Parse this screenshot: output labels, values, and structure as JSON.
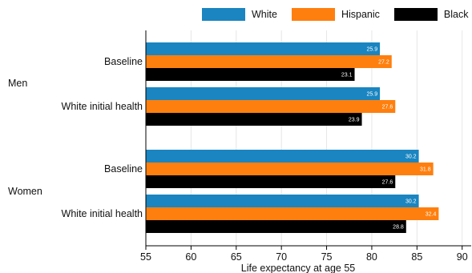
{
  "chart_data": {
    "type": "bar",
    "orientation": "horizontal",
    "xlabel": "Life expectancy at age 55",
    "xlim": [
      55,
      91
    ],
    "xticks": [
      55,
      60,
      65,
      70,
      75,
      80,
      85,
      90
    ],
    "grid": true,
    "legend_position": "top",
    "groups": [
      {
        "label": "Men",
        "categories": [
          {
            "label": "Baseline",
            "values": [
              25.9,
              27.2,
              23.1
            ]
          },
          {
            "label": "White initial health",
            "values": [
              25.9,
              27.6,
              23.9
            ]
          }
        ]
      },
      {
        "label": "Women",
        "categories": [
          {
            "label": "Baseline",
            "values": [
              30.2,
              31.8,
              27.6
            ]
          },
          {
            "label": "White initial health",
            "values": [
              30.2,
              32.4,
              28.8
            ]
          }
        ]
      }
    ],
    "series": [
      {
        "name": "White",
        "color": "#1a85c0"
      },
      {
        "name": "Hispanic",
        "color": "#ff7f0e"
      },
      {
        "name": "Black",
        "color": "#000000"
      }
    ],
    "value_offset": 55
  }
}
